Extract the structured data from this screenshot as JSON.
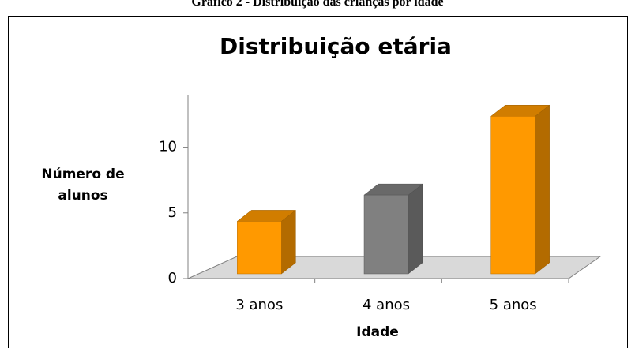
{
  "caption": "Gráfico 2 - Distribuição das crianças por idade",
  "chart_data": {
    "type": "bar3d",
    "title": "Distribuição etária",
    "categories": [
      "3 anos",
      "4 anos",
      "5 anos"
    ],
    "values": [
      4,
      6,
      12
    ],
    "colors": [
      "#ff9900",
      "#808080",
      "#ff9900"
    ],
    "x_label": "Idade",
    "y_label": "Número de alunos",
    "ylim": [
      0,
      14
    ],
    "yticks": [
      0,
      5,
      10
    ],
    "grid": false
  }
}
